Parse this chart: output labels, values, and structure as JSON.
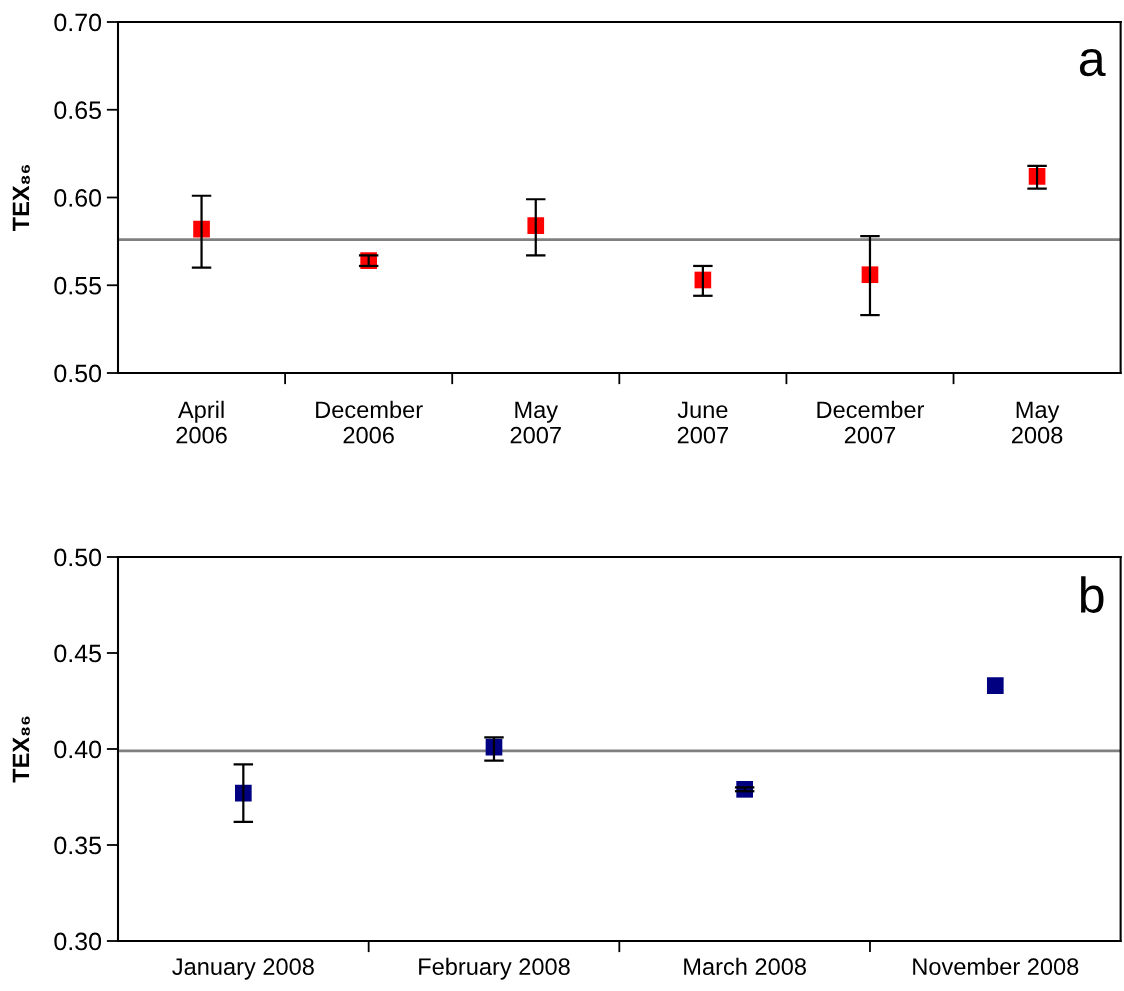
{
  "chart_data": [
    {
      "type": "scatter",
      "categories": [
        "April\n2006",
        "December\n2006",
        "May\n2007",
        "June\n2007",
        "December\n2007",
        "May\n2008"
      ],
      "ylabel": "TEX₈₆",
      "annotations": [
        "a"
      ],
      "series": [
        {
          "color": "#ff0000",
          "values": [
            0.582,
            0.564,
            0.584,
            0.553,
            0.556,
            0.612
          ],
          "errors": [
            [
              0.56,
              0.601
            ],
            [
              0.561,
              0.567
            ],
            [
              0.567,
              0.599
            ],
            [
              0.544,
              0.561
            ],
            [
              0.533,
              0.578
            ],
            [
              0.605,
              0.618
            ]
          ]
        }
      ],
      "marker": "square",
      "ylim": [
        0.5,
        0.7
      ],
      "yticks": [
        {
          "value": 0.5,
          "label": "0.50"
        },
        {
          "value": 0.55,
          "label": "0.55"
        },
        {
          "value": 0.6,
          "label": "0.60"
        },
        {
          "value": 0.65,
          "label": "0.65"
        },
        {
          "value": 0.7,
          "label": "0.70"
        }
      ],
      "ref_lines": [
        {
          "axis": "y",
          "value": 0.576,
          "color": "#808080"
        }
      ],
      "grid": false,
      "legend": false
    },
    {
      "type": "scatter",
      "categories": [
        "January 2008",
        "February 2008",
        "March 2008",
        "November 2008"
      ],
      "ylabel": "TEX₈₆",
      "annotations": [
        "b"
      ],
      "series": [
        {
          "color": "#000080",
          "values": [
            0.377,
            0.401,
            0.379,
            0.433
          ],
          "errors": [
            [
              0.362,
              0.392
            ],
            [
              0.394,
              0.406
            ],
            [
              0.378,
              0.38
            ],
            null
          ]
        }
      ],
      "marker": "square",
      "ylim": [
        0.3,
        0.5
      ],
      "yticks": [
        {
          "value": 0.3,
          "label": "0.30"
        },
        {
          "value": 0.35,
          "label": "0.35"
        },
        {
          "value": 0.4,
          "label": "0.40"
        },
        {
          "value": 0.45,
          "label": "0.45"
        },
        {
          "value": 0.5,
          "label": "0.50"
        }
      ],
      "ref_lines": [
        {
          "axis": "y",
          "value": 0.399,
          "color": "#808080"
        }
      ],
      "grid": false,
      "legend": false
    }
  ]
}
